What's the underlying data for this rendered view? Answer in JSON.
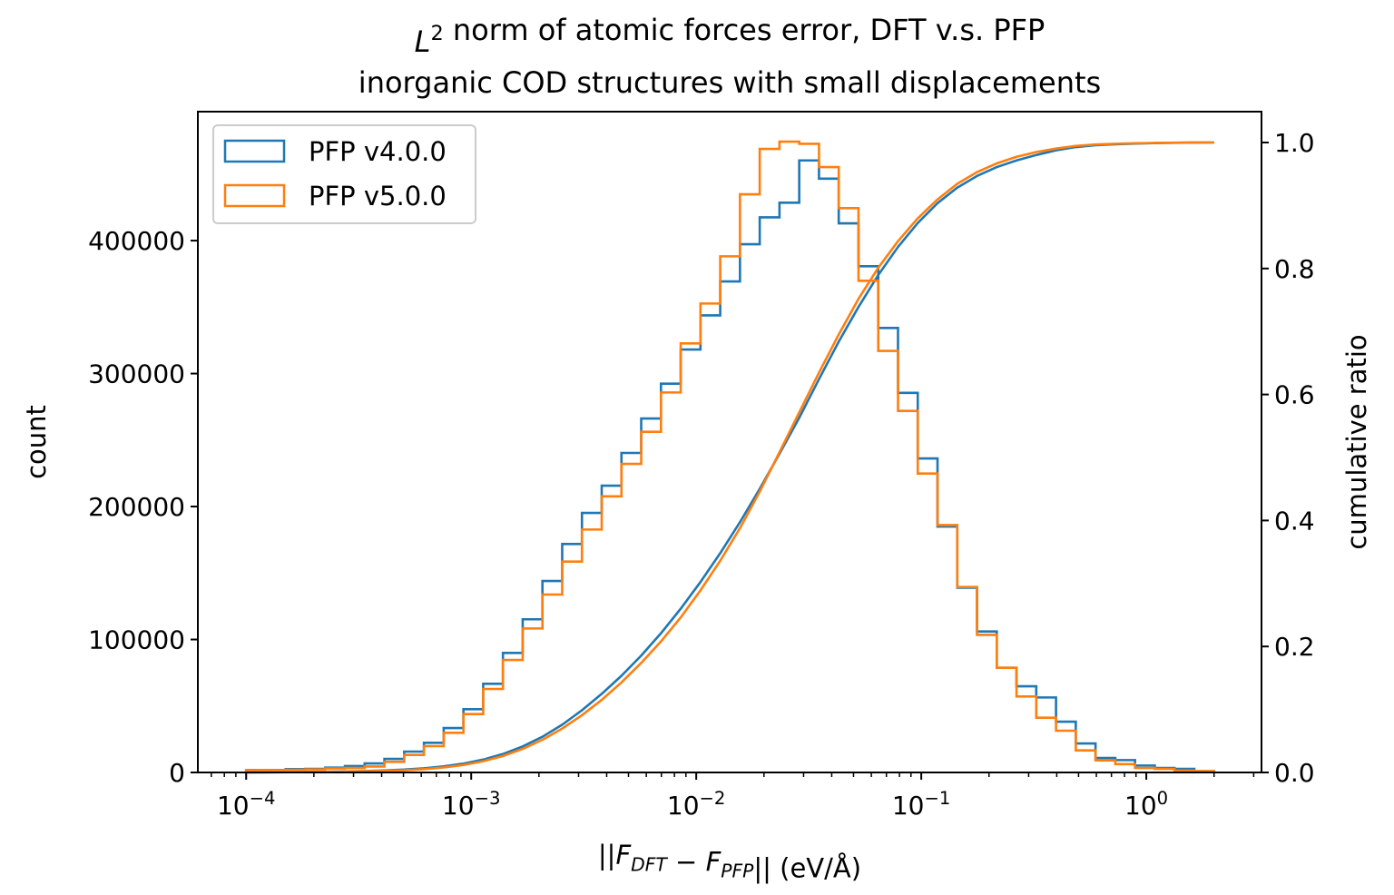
{
  "chart_data": {
    "type": "histogram-step",
    "title_lines": [
      "L^{2} norm of atomic forces error, DFT v.s. PFP",
      "inorganic COD structures with small displacements"
    ],
    "xlabel": "||F_{DFT} − F_{PFP}|| (eV/Å)",
    "ylabel": "count",
    "ylabel_right": "cumulative ratio",
    "xscale": "log",
    "xlim": [
      6.1e-05,
      3.25
    ],
    "ylim": [
      0,
      497000
    ],
    "ylim_right": [
      0,
      1.049
    ],
    "xticks": [
      0.0001,
      0.001,
      0.01,
      0.1,
      1
    ],
    "xtick_labels": [
      "10^{−4}",
      "10^{−3}",
      "10^{−2}",
      "10^{−1}",
      "10^{0}"
    ],
    "yticks": [
      0,
      100000,
      200000,
      300000,
      400000
    ],
    "ytick_labels": [
      "0",
      "100000",
      "200000",
      "300000",
      "400000"
    ],
    "yticks_right": [
      0,
      0.2,
      0.4,
      0.6,
      0.8,
      1.0
    ],
    "ytick_labels_right": [
      "0.0",
      "0.2",
      "0.4",
      "0.6",
      "0.8",
      "1.0"
    ],
    "bin_range": [
      0.0001,
      2
    ],
    "n_bins": 49,
    "grid": false,
    "legend_position": "top-left",
    "series": [
      {
        "name": "PFP v4.0.0",
        "color": "#1f77b4",
        "values": [
          1800,
          1800,
          2500,
          2700,
          3600,
          4800,
          6800,
          10200,
          15700,
          22300,
          33400,
          47600,
          66700,
          89900,
          115200,
          144000,
          171800,
          195200,
          215700,
          240300,
          266200,
          292400,
          318100,
          343800,
          369300,
          397300,
          417500,
          428500,
          460300,
          446600,
          413000,
          380700,
          334300,
          285500,
          236200,
          185000,
          139000,
          106000,
          78700,
          64800,
          56400,
          38200,
          21800,
          10900,
          9300,
          5200,
          3400,
          2700,
          1000
        ]
      },
      {
        "name": "PFP v5.0.0",
        "color": "#ff7f0e",
        "values": [
          1800,
          1800,
          2000,
          2300,
          3000,
          3400,
          4500,
          8000,
          13200,
          19800,
          29800,
          43900,
          62800,
          84600,
          108300,
          133800,
          158600,
          182700,
          207700,
          232100,
          256200,
          285800,
          322700,
          352700,
          388200,
          434800,
          469000,
          474400,
          472800,
          455300,
          424400,
          369800,
          317100,
          271900,
          224800,
          186100,
          139500,
          103500,
          78700,
          57100,
          41200,
          31400,
          16600,
          9100,
          6300,
          3400,
          2700,
          1400,
          1000
        ]
      }
    ],
    "cumulative": "cumulative ratio of each series on right axis"
  }
}
